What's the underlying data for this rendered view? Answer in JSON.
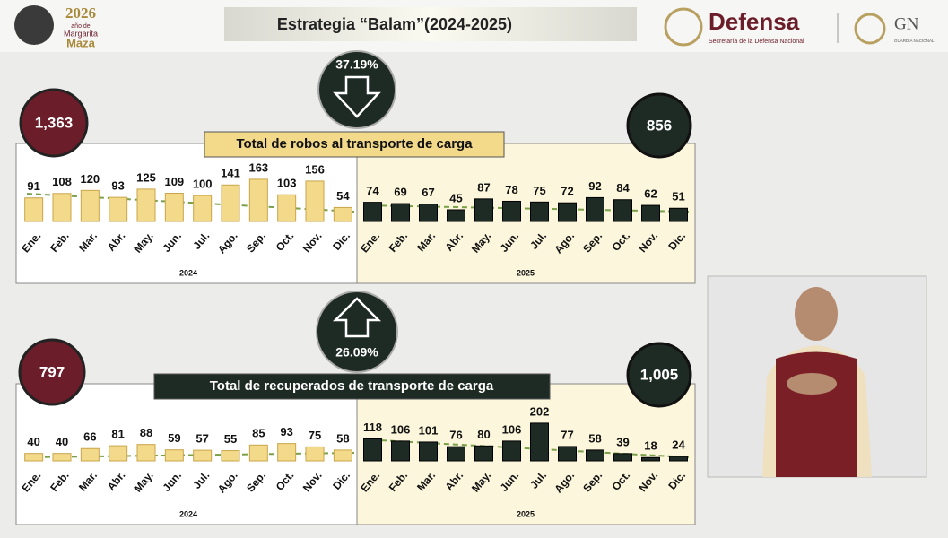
{
  "header": {
    "logo_year": "2026",
    "logo_sub": "año de",
    "logo_name_1": "Margarita",
    "logo_name_2": "Maza",
    "title": "Estrategia “Balam”(2024-2025)",
    "brand": "Defensa",
    "brand_sub": "Secretaría de la Defensa Nacional",
    "gn": "GN",
    "gn_sub": "GUARDIA NACIONAL"
  },
  "sections": [
    {
      "title": "Total de robos al transporte de carga",
      "total_2024": "1,363",
      "total_2025": "856",
      "change": "37.19%"
    },
    {
      "title": "Total de recuperados de transporte de carga",
      "total_2024": "797",
      "total_2025": "1,005",
      "change": "26.09%"
    }
  ],
  "chart_data": [
    {
      "type": "bar",
      "xlabel": "2024",
      "color": "#f3d98a",
      "ylim": [
        0,
        180
      ],
      "categories": [
        "Ene.",
        "Feb.",
        "Mar.",
        "Abr.",
        "May.",
        "Jun.",
        "Jul.",
        "Ago.",
        "Sep.",
        "Oct.",
        "Nov.",
        "Dic."
      ],
      "values": [
        91,
        108,
        120,
        93,
        125,
        109,
        100,
        141,
        163,
        103,
        156,
        54
      ]
    },
    {
      "type": "bar",
      "xlabel": "2025",
      "color": "#1e2b25",
      "ylim": [
        0,
        180
      ],
      "categories": [
        "Ene.",
        "Feb.",
        "Mar.",
        "Abr.",
        "May.",
        "Jun.",
        "Jul.",
        "Ago.",
        "Sep.",
        "Oct.",
        "Nov.",
        "Dic."
      ],
      "values": [
        74,
        69,
        67,
        45,
        87,
        78,
        75,
        72,
        92,
        84,
        62,
        51
      ]
    },
    {
      "type": "bar",
      "xlabel": "2024",
      "color": "#f3d98a",
      "ylim": [
        0,
        240
      ],
      "categories": [
        "Ene.",
        "Feb.",
        "Mar.",
        "Abr.",
        "May.",
        "Jun.",
        "Jul.",
        "Ago.",
        "Sep.",
        "Oct.",
        "Nov.",
        "Dic."
      ],
      "values": [
        40,
        40,
        66,
        81,
        88,
        59,
        57,
        55,
        85,
        93,
        75,
        58
      ]
    },
    {
      "type": "bar",
      "xlabel": "2025",
      "color": "#1e2b25",
      "ylim": [
        0,
        240
      ],
      "categories": [
        "Ene.",
        "Feb.",
        "Mar.",
        "Abr.",
        "May.",
        "Jun.",
        "Jul.",
        "Ago.",
        "Sep.",
        "Oct.",
        "Nov.",
        "Dic."
      ],
      "values": [
        118,
        106,
        101,
        76,
        80,
        106,
        202,
        77,
        58,
        39,
        18,
        24
      ]
    }
  ]
}
